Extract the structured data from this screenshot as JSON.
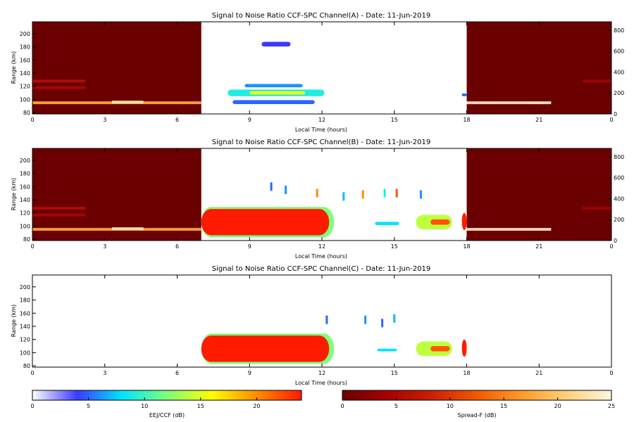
{
  "chart_data": [
    {
      "type": "heatmap",
      "title": "Signal to Noise Ratio CCF-SPC Channel(A) - Date: 11-Jun-2019",
      "xlabel": "Local Time (hours)",
      "ylabel": "Range (km)",
      "xlim": [
        0,
        24
      ],
      "ylim": [
        78,
        218
      ],
      "y2lim": [
        0,
        880
      ],
      "x_ticks": [
        "0",
        "3",
        "6",
        "9",
        "12",
        "15",
        "18",
        "21",
        "0"
      ],
      "x_tick_values": [
        0,
        3,
        6,
        9,
        12,
        15,
        18,
        21,
        24
      ],
      "y_ticks": [
        "80",
        "100",
        "120",
        "140",
        "160",
        "180",
        "200"
      ],
      "y_tick_values": [
        80,
        100,
        120,
        140,
        160,
        180,
        200
      ],
      "y2_ticks": [
        "0",
        "200",
        "400",
        "600",
        "800"
      ],
      "y2_tick_values": [
        0,
        200,
        400,
        600,
        800
      ],
      "night_blocks": [
        {
          "x_start": 0,
          "x_end": 7.0,
          "colorscale": "spread-f"
        },
        {
          "x_start": 18.0,
          "x_end": 24,
          "colorscale": "spread-f"
        }
      ],
      "night_echoes": [
        {
          "x_start": 0,
          "x_end": 7.0,
          "y": 95,
          "snr_db": 18
        },
        {
          "x_start": 0,
          "x_end": 2.2,
          "y": 128,
          "snr_db": 6
        },
        {
          "x_start": 0,
          "x_end": 2.2,
          "y": 118,
          "snr_db": 5
        },
        {
          "x_start": 3.3,
          "x_end": 4.6,
          "y": 96,
          "snr_db": 23
        },
        {
          "x_start": 18.0,
          "x_end": 21.5,
          "y": 95,
          "snr_db": 24
        },
        {
          "x_start": 22.8,
          "x_end": 24,
          "y": 128,
          "snr_db": 4
        }
      ],
      "day_echoes": [
        {
          "x_start": 8.1,
          "x_end": 12.1,
          "y": 110,
          "height_km": 10,
          "snr_db": 9
        },
        {
          "x_start": 9.0,
          "x_end": 11.3,
          "y": 110,
          "height_km": 5,
          "snr_db": 16
        },
        {
          "x_start": 8.3,
          "x_end": 11.7,
          "y": 96,
          "height_km": 6,
          "snr_db": 5
        },
        {
          "x_start": 8.8,
          "x_end": 11.2,
          "y": 121,
          "height_km": 5,
          "snr_db": 6
        },
        {
          "x_start": 9.5,
          "x_end": 10.7,
          "y": 184,
          "height_km": 7,
          "snr_db": 4
        },
        {
          "x_start": 17.8,
          "x_end": 18.0,
          "y": 107,
          "height_km": 4,
          "snr_db": 5
        }
      ]
    },
    {
      "type": "heatmap",
      "title": "Signal to Noise Ratio CCF-SPC Channel(B) - Date: 11-Jun-2019",
      "xlabel": "Local Time (hours)",
      "ylabel": "Range (km)",
      "xlim": [
        0,
        24
      ],
      "ylim": [
        78,
        218
      ],
      "y2lim": [
        0,
        880
      ],
      "x_ticks": [
        "0",
        "3",
        "6",
        "9",
        "12",
        "15",
        "18",
        "21",
        "0"
      ],
      "x_tick_values": [
        0,
        3,
        6,
        9,
        12,
        15,
        18,
        21,
        24
      ],
      "y_ticks": [
        "80",
        "100",
        "120",
        "140",
        "160",
        "180",
        "200"
      ],
      "y_tick_values": [
        80,
        100,
        120,
        140,
        160,
        180,
        200
      ],
      "y2_ticks": [
        "0",
        "200",
        "400",
        "600",
        "800"
      ],
      "y2_tick_values": [
        0,
        200,
        400,
        600,
        800
      ],
      "night_blocks": [
        {
          "x_start": 0,
          "x_end": 7.0,
          "colorscale": "spread-f"
        },
        {
          "x_start": 18.0,
          "x_end": 24,
          "colorscale": "spread-f"
        }
      ],
      "night_echoes": [
        {
          "x_start": 0,
          "x_end": 7.0,
          "y": 95,
          "snr_db": 18
        },
        {
          "x_start": 0,
          "x_end": 2.2,
          "y": 127,
          "snr_db": 6
        },
        {
          "x_start": 0,
          "x_end": 2.2,
          "y": 117,
          "snr_db": 5
        },
        {
          "x_start": 3.3,
          "x_end": 4.6,
          "y": 96,
          "snr_db": 23
        },
        {
          "x_start": 18.0,
          "x_end": 21.5,
          "y": 95,
          "snr_db": 24
        },
        {
          "x_start": 22.8,
          "x_end": 24,
          "y": 127,
          "snr_db": 4
        }
      ],
      "day_echoes": [
        {
          "x_start": 7.0,
          "x_end": 12.5,
          "y": 106,
          "height_km": 46,
          "snr_db": 12
        },
        {
          "x_start": 7.0,
          "x_end": 12.3,
          "y": 106,
          "height_km": 40,
          "snr_db": 24
        },
        {
          "x_start": 15.9,
          "x_end": 17.4,
          "y": 106,
          "height_km": 22,
          "snr_db": 14
        },
        {
          "x_start": 16.5,
          "x_end": 17.3,
          "y": 106,
          "height_km": 8,
          "snr_db": 22
        },
        {
          "x_start": 17.8,
          "x_end": 18.0,
          "y": 107,
          "height_km": 26,
          "snr_db": 24
        },
        {
          "x_start": 14.2,
          "x_end": 15.2,
          "y": 104,
          "height_km": 5,
          "snr_db": 8
        }
      ],
      "scatter_echoes": [
        {
          "x": 11.8,
          "y": 150,
          "snr_db": 20
        },
        {
          "x": 13.7,
          "y": 148,
          "snr_db": 20
        },
        {
          "x": 15.1,
          "y": 150,
          "snr_db": 22
        },
        {
          "x": 10.5,
          "y": 155,
          "snr_db": 6
        },
        {
          "x": 12.9,
          "y": 145,
          "snr_db": 7
        },
        {
          "x": 14.6,
          "y": 150,
          "snr_db": 9
        },
        {
          "x": 16.1,
          "y": 148,
          "snr_db": 6
        },
        {
          "x": 9.9,
          "y": 160,
          "snr_db": 5
        }
      ]
    },
    {
      "type": "heatmap",
      "title": "Signal to Noise Ratio CCF-SPC Channel(C) - Date: 11-Jun-2019",
      "xlabel": "Local Time (hours)",
      "ylabel": "Range (km)",
      "xlim": [
        0,
        24
      ],
      "ylim": [
        78,
        218
      ],
      "x_ticks": [
        "0",
        "3",
        "6",
        "9",
        "12",
        "15",
        "18",
        "21",
        "0"
      ],
      "x_tick_values": [
        0,
        3,
        6,
        9,
        12,
        15,
        18,
        21,
        24
      ],
      "y_ticks": [
        "80",
        "100",
        "120",
        "140",
        "160",
        "180",
        "200"
      ],
      "y_tick_values": [
        80,
        100,
        120,
        140,
        160,
        180,
        200
      ],
      "day_echoes": [
        {
          "x_start": 7.0,
          "x_end": 12.5,
          "y": 106,
          "height_km": 46,
          "snr_db": 12
        },
        {
          "x_start": 7.0,
          "x_end": 12.3,
          "y": 106,
          "height_km": 40,
          "snr_db": 24
        },
        {
          "x_start": 15.9,
          "x_end": 17.4,
          "y": 106,
          "height_km": 22,
          "snr_db": 14
        },
        {
          "x_start": 16.5,
          "x_end": 17.3,
          "y": 106,
          "height_km": 8,
          "snr_db": 22
        },
        {
          "x_start": 17.8,
          "x_end": 18.0,
          "y": 107,
          "height_km": 26,
          "snr_db": 24
        },
        {
          "x_start": 14.3,
          "x_end": 15.1,
          "y": 104,
          "height_km": 4,
          "snr_db": 8
        }
      ],
      "scatter_echoes": [
        {
          "x": 13.8,
          "y": 150,
          "snr_db": 6
        },
        {
          "x": 15.0,
          "y": 152,
          "snr_db": 7
        },
        {
          "x": 12.2,
          "y": 150,
          "snr_db": 5
        },
        {
          "x": 14.5,
          "y": 145,
          "snr_db": 5
        }
      ]
    }
  ],
  "colorbars": [
    {
      "label": "EEJ/CCF (dB)",
      "range": [
        0,
        24
      ],
      "ticks": [
        "0",
        "5",
        "10",
        "15",
        "20"
      ],
      "tick_values": [
        0,
        5,
        10,
        15,
        20
      ],
      "stops": [
        "#ffffff",
        "#3a3aff",
        "#00e5ff",
        "#7dff7a",
        "#ffff00",
        "#ff8c00",
        "#ff1a00"
      ]
    },
    {
      "label": "Spread-F (dB)",
      "range": [
        0,
        25
      ],
      "ticks": [
        "0",
        "5",
        "10",
        "15",
        "20",
        "25"
      ],
      "tick_values": [
        0,
        5,
        10,
        15,
        20,
        25
      ],
      "stops": [
        "#6b0000",
        "#a50000",
        "#cc2000",
        "#f05a00",
        "#ff9a2a",
        "#ffd27a",
        "#fff4e0"
      ]
    }
  ]
}
